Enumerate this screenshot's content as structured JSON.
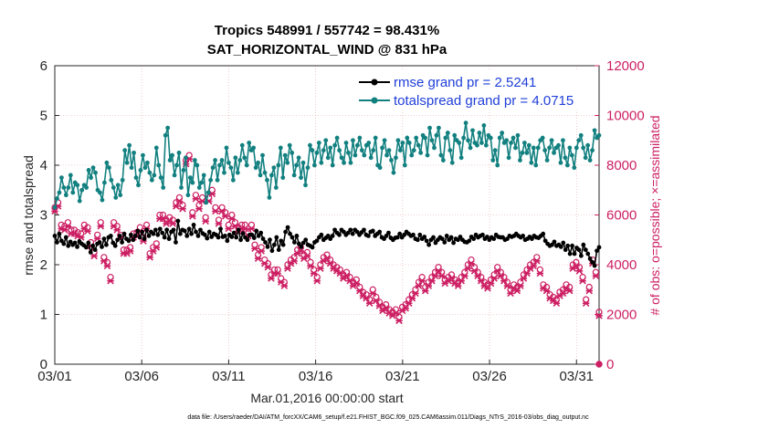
{
  "chart_data": {
    "type": "line",
    "title": "Tropics 548991 / 557742 = 98.431%",
    "subtitle": "SAT_HORIZONTAL_WIND @ 831 hPa",
    "xlabel": "Mar.01,2016 00:00:00 start",
    "ylabel_left": "rmse and totalspread",
    "ylabel_right": "# of obs: o=possible; ×=assimilated",
    "footnote": "data file: /Users/raeder/DAI/ATM_forcXX/CAM6_setup/f.e21.FHIST_BGC.f09_025.CAM6assim.011/Diags_NTrS_2016-03/obs_diag_output.nc",
    "x_ticks": [
      "03/01",
      "03/06",
      "03/11",
      "03/16",
      "03/21",
      "03/26",
      "03/31"
    ],
    "x_tick_days": [
      1,
      6,
      11,
      16,
      21,
      26,
      31
    ],
    "xlim": [
      1,
      32.3
    ],
    "ylim_left": [
      0,
      6
    ],
    "yticks_left": [
      "0",
      "1",
      "2",
      "3",
      "4",
      "5",
      "6"
    ],
    "ylim_right": [
      0,
      12000
    ],
    "yticks_right": [
      "0",
      "2000",
      "4000",
      "6000",
      "8000",
      "10000",
      "12000"
    ],
    "colors": {
      "rmse": "#000000",
      "spread": "#138080",
      "obs": "#cc1f63",
      "legend_text": "#1f3fd8",
      "grid": "#e3a5a5"
    },
    "legend_position": "top-right",
    "series": [
      {
        "name": "rmse grand pr = 2.5241",
        "key": "rmse",
        "marker": "dot",
        "values": [
          2.58,
          2.45,
          2.62,
          2.48,
          2.42,
          2.55,
          2.38,
          2.46,
          2.4,
          2.44,
          2.36,
          2.47,
          2.42,
          2.39,
          2.35,
          2.44,
          2.25,
          2.38,
          2.3,
          2.42,
          2.45,
          2.36,
          2.52,
          2.4,
          2.55,
          2.58,
          2.44,
          2.38,
          2.5,
          2.58,
          2.45,
          2.62,
          2.52,
          2.48,
          2.6,
          2.5,
          2.58,
          2.68,
          2.55,
          2.66,
          2.52,
          2.7,
          2.58,
          2.66,
          2.62,
          2.7,
          2.6,
          2.72,
          2.64,
          2.55,
          2.7,
          2.52,
          2.66,
          2.7,
          2.45,
          2.88,
          2.62,
          2.7,
          2.68,
          2.58,
          2.72,
          2.62,
          2.8,
          2.66,
          2.58,
          2.7,
          2.63,
          2.6,
          2.53,
          2.66,
          2.56,
          2.62,
          2.6,
          2.55,
          2.72,
          2.56,
          2.58,
          2.48,
          2.6,
          2.56,
          2.64,
          2.55,
          2.7,
          2.5,
          2.63,
          2.55,
          2.5,
          2.6,
          2.6,
          2.54,
          2.68,
          2.58,
          2.64,
          2.52,
          2.45,
          2.36,
          2.5,
          2.28,
          2.4,
          2.55,
          2.3,
          2.48,
          2.4,
          2.66,
          2.75,
          2.62,
          2.55,
          2.45,
          2.58,
          2.42,
          2.36,
          2.44,
          2.5,
          2.4,
          2.38,
          2.35,
          2.45,
          2.48,
          2.55,
          2.6,
          2.5,
          2.54,
          2.58,
          2.52,
          2.58,
          2.7,
          2.64,
          2.6,
          2.7,
          2.66,
          2.6,
          2.64,
          2.7,
          2.62,
          2.7,
          2.66,
          2.6,
          2.65,
          2.7,
          2.6,
          2.58,
          2.66,
          2.68,
          2.58,
          2.62,
          2.66,
          2.55,
          2.52,
          2.58,
          2.64,
          2.54,
          2.5,
          2.54,
          2.55,
          2.62,
          2.55,
          2.6,
          2.66,
          2.62,
          2.58,
          2.6,
          2.52,
          2.5,
          2.6,
          2.52,
          2.56,
          2.48,
          2.4,
          2.5,
          2.55,
          2.44,
          2.5,
          2.55,
          2.52,
          2.45,
          2.58,
          2.5,
          2.55,
          2.44,
          2.52,
          2.5,
          2.56,
          2.5,
          2.46,
          2.45,
          2.48,
          2.56,
          2.52,
          2.6,
          2.55,
          2.58,
          2.6,
          2.52,
          2.56,
          2.5,
          2.55,
          2.52,
          2.6,
          2.56,
          2.55,
          2.55,
          2.5,
          2.52,
          2.58,
          2.56,
          2.58,
          2.62,
          2.58,
          2.55,
          2.58,
          2.5,
          2.52,
          2.56,
          2.52,
          2.58,
          2.55,
          2.54,
          2.58,
          2.62,
          2.48,
          2.42,
          2.38,
          2.4,
          2.46,
          2.38,
          2.4,
          2.36,
          2.44,
          2.3,
          2.38,
          2.22,
          2.38,
          2.22,
          2.34,
          2.3,
          2.18,
          2.4,
          2.3,
          2.22,
          2.12,
          2.05,
          1.98,
          2.28,
          2.35
        ]
      },
      {
        "name": "totalspread grand pr = 4.0715",
        "key": "spread",
        "marker": "dot",
        "values": [
          3.15,
          3.33,
          3.45,
          3.75,
          3.55,
          3.4,
          3.55,
          3.8,
          3.45,
          3.65,
          3.6,
          3.28,
          3.5,
          3.6,
          3.55,
          3.9,
          3.75,
          3.95,
          3.85,
          3.5,
          3.45,
          3.3,
          3.65,
          4.05,
          3.95,
          3.7,
          3.55,
          3.35,
          3.6,
          3.4,
          3.7,
          4.3,
          4.05,
          4.4,
          3.95,
          4.25,
          3.75,
          3.6,
          3.9,
          4.2,
          3.95,
          4.05,
          3.85,
          3.7,
          3.8,
          4.35,
          4.0,
          3.75,
          3.55,
          4.6,
          4.75,
          4.1,
          4.2,
          3.8,
          4.0,
          4.25,
          3.55,
          3.9,
          4.15,
          3.4,
          3.75,
          3.65,
          4.1,
          4.0,
          3.55,
          3.65,
          3.8,
          3.25,
          3.45,
          3.7,
          3.95,
          4.1,
          3.7,
          4.0,
          4.1,
          3.85,
          4.35,
          4.05,
          3.95,
          3.7,
          4.15,
          3.85,
          4.1,
          4.4,
          4.15,
          4.0,
          4.45,
          4.3,
          4.35,
          3.95,
          4.05,
          3.8,
          4.2,
          3.85,
          3.7,
          3.35,
          3.8,
          3.95,
          3.55,
          4.0,
          4.35,
          3.75,
          4.2,
          4.05,
          4.4,
          4.25,
          3.8,
          4.0,
          4.15,
          3.75,
          4.05,
          3.6,
          3.95,
          4.4,
          4.3,
          4.0,
          4.25,
          4.45,
          4.05,
          4.3,
          4.5,
          4.15,
          4.35,
          4.0,
          4.4,
          4.55,
          4.3,
          4.15,
          4.05,
          4.45,
          4.25,
          4.05,
          4.5,
          4.2,
          4.4,
          4.55,
          4.3,
          4.2,
          4.4,
          4.45,
          4.15,
          4.3,
          4.55,
          4.0,
          3.95,
          4.35,
          4.5,
          4.2,
          4.3,
          4.1,
          3.85,
          4.15,
          4.5,
          4.3,
          4.45,
          4.0,
          4.55,
          4.45,
          4.2,
          4.3,
          4.55,
          4.4,
          4.25,
          4.6,
          4.55,
          4.2,
          4.75,
          4.5,
          4.35,
          4.6,
          4.75,
          4.2,
          4.1,
          4.55,
          4.65,
          4.3,
          4.05,
          4.6,
          4.5,
          4.45,
          4.15,
          4.55,
          4.85,
          4.5,
          4.35,
          4.7,
          4.45,
          4.4,
          4.65,
          4.45,
          4.8,
          4.4,
          4.6,
          4.55,
          4.1,
          4.3,
          4.0,
          4.55,
          4.65,
          4.45,
          4.5,
          4.15,
          4.45,
          4.55,
          4.35,
          4.6,
          4.1,
          4.25,
          4.45,
          4.25,
          4.4,
          4.05,
          4.35,
          4.0,
          4.35,
          4.5,
          4.55,
          4.3,
          4.1,
          4.35,
          4.5,
          4.25,
          4.35,
          4.4,
          4.05,
          4.5,
          4.15,
          4.0,
          4.35,
          4.2,
          3.95,
          4.35,
          4.5,
          4.6,
          4.35,
          4.15,
          4.4,
          4.1,
          4.3,
          4.7,
          4.55,
          4.6
        ]
      },
      {
        "name": "obs possible",
        "key": "obs_possible",
        "marker": "circle",
        "axis": "right",
        "values": [
          6300,
          6500,
          5600,
          5550,
          5700,
          5400,
          5400,
          5300,
          5250,
          5600,
          5500,
          4900,
          4500,
          5200,
          5700,
          4300,
          4100,
          3500,
          5700,
          5550,
          5200,
          4600,
          4600,
          4700,
          5250,
          5300,
          5500,
          5100,
          5600,
          4450,
          4700,
          4850,
          6000,
          6000,
          5800,
          5900,
          5800,
          6500,
          6700,
          6400,
          8200,
          8400,
          6100,
          6800,
          6400,
          6700,
          5900,
          6700,
          7000,
          6300,
          5800,
          6300,
          6100,
          5600,
          6000,
          5700,
          5500,
          5600,
          5600,
          5300,
          5600,
          4800,
          4400,
          4700,
          4200,
          4050,
          3600,
          3800,
          3800,
          3450,
          3300,
          4000,
          4200,
          4300,
          4600,
          4700,
          4400,
          4500,
          4100,
          3800,
          3500,
          4000,
          4300,
          4400,
          4200,
          4000,
          3900,
          3800,
          3600,
          3700,
          3500,
          3300,
          3400,
          3100,
          2900,
          2800,
          2600,
          3000,
          2700,
          2500,
          2300,
          2400,
          2200,
          2100,
          2200,
          1900,
          2300,
          2400,
          2600,
          2800,
          3000,
          3300,
          3500,
          3100,
          3300,
          3500,
          3700,
          3900,
          3700,
          3400,
          3500,
          3600,
          3400,
          3300,
          3500,
          3700,
          4000,
          4200,
          3900,
          3700,
          3500,
          3300,
          3200,
          3400,
          3600,
          3900,
          3700,
          3500,
          3300,
          3000,
          3200,
          3100,
          3300,
          3600,
          3800,
          4000,
          4100,
          4300,
          3800,
          3200,
          3100,
          2800,
          2700,
          2600,
          2900,
          3000,
          3200,
          3100,
          4000,
          4100,
          3900,
          3500,
          2600,
          3100,
          4200,
          3700,
          2100
        ]
      },
      {
        "name": "obs assimilated",
        "key": "obs_assim",
        "marker": "cross",
        "axis": "right",
        "values": [
          6150,
          6350,
          5450,
          5400,
          5550,
          5250,
          5250,
          5150,
          5100,
          5450,
          5350,
          4750,
          4350,
          5050,
          5550,
          4150,
          3950,
          3350,
          5550,
          5400,
          5050,
          4450,
          4450,
          4550,
          5100,
          5150,
          5350,
          4950,
          5450,
          4300,
          4550,
          4700,
          5850,
          5850,
          5650,
          5750,
          5650,
          6350,
          6550,
          6250,
          8050,
          8250,
          5950,
          6650,
          6250,
          6550,
          5750,
          6550,
          6850,
          6150,
          5650,
          6150,
          5950,
          5450,
          5850,
          5550,
          5350,
          5450,
          5450,
          5150,
          5450,
          4650,
          4250,
          4550,
          4050,
          3900,
          3450,
          3650,
          3650,
          3300,
          3150,
          3850,
          4050,
          4150,
          4450,
          4550,
          4250,
          4350,
          3950,
          3650,
          3350,
          3850,
          4150,
          4250,
          4050,
          3850,
          3750,
          3650,
          3450,
          3550,
          3350,
          3150,
          3250,
          2950,
          2750,
          2650,
          2450,
          2850,
          2550,
          2350,
          2150,
          2250,
          2050,
          1950,
          2050,
          1750,
          2150,
          2250,
          2450,
          2650,
          2850,
          3150,
          3350,
          2950,
          3150,
          3350,
          3550,
          3750,
          3550,
          3250,
          3350,
          3450,
          3250,
          3150,
          3350,
          3550,
          3850,
          4050,
          3750,
          3550,
          3350,
          3150,
          3050,
          3250,
          3450,
          3750,
          3550,
          3350,
          3150,
          2850,
          3050,
          2950,
          3150,
          3450,
          3650,
          3850,
          3950,
          4150,
          3650,
          3050,
          2950,
          2650,
          2550,
          2450,
          2750,
          2850,
          3050,
          2950,
          3850,
          3950,
          3750,
          3350,
          2450,
          2950,
          4050,
          3550,
          1950
        ]
      }
    ]
  }
}
